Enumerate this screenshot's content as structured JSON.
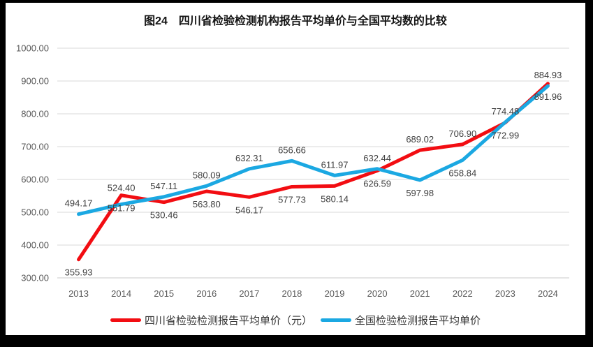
{
  "title": "图24　四川省检验检测机构报告平均单价与全国平均数的比较",
  "chart_data": {
    "type": "line",
    "title": "图24　四川省检验检测机构报告平均单价与全国平均数的比较",
    "x": [
      "2013",
      "2014",
      "2015",
      "2016",
      "2017",
      "2018",
      "2019",
      "2020",
      "2021",
      "2022",
      "2023",
      "2024"
    ],
    "series": [
      {
        "name": "四川省检验检测报告平均单价（元）",
        "color": "#F20D12",
        "values": [
          355.93,
          551.79,
          530.46,
          563.8,
          546.17,
          577.73,
          580.14,
          626.59,
          689.02,
          706.9,
          772.99,
          891.96
        ],
        "label_positions": [
          "below",
          "below",
          "below",
          "below",
          "below",
          "below",
          "below",
          "below",
          "above",
          "above",
          "below",
          "below"
        ]
      },
      {
        "name": "全国检验检测报告平均单价",
        "color": "#1BA8E2",
        "values": [
          494.17,
          524.4,
          547.11,
          580.09,
          632.31,
          656.66,
          611.97,
          632.44,
          597.98,
          658.84,
          774.48,
          884.93
        ],
        "label_positions": [
          "above",
          "above",
          "above",
          "above",
          "above",
          "above",
          "above",
          "above",
          "below",
          "below",
          "above",
          "above"
        ]
      }
    ],
    "ylim": [
      300,
      1000
    ],
    "ytick_step": 100,
    "grid": true,
    "legend_position": "bottom",
    "xlabel": "",
    "ylabel": ""
  },
  "colors": {
    "grid": "#D9D9D9",
    "baseline": "#C8C8C8",
    "axis_text": "#595959",
    "data_label_text": "#3F3F3F",
    "frame": "#000000",
    "background": "#FFFFFF"
  }
}
